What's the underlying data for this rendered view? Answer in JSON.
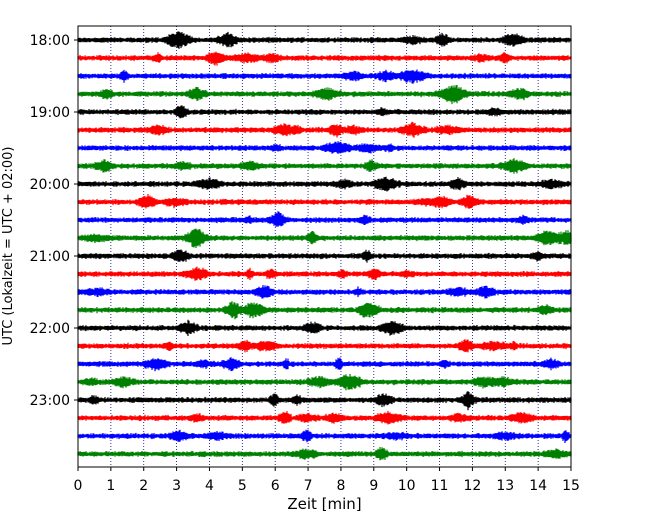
{
  "chart_data": {
    "type": "line",
    "title": "",
    "xlabel": "Zeit  [min]",
    "ylabel": "UTC (Lokalzeit = UTC + 02:00)",
    "xlim": [
      0,
      15
    ],
    "x_ticks": [
      "0",
      "1",
      "2",
      "3",
      "4",
      "5",
      "6",
      "7",
      "8",
      "9",
      "10",
      "11",
      "12",
      "13",
      "14",
      "15"
    ],
    "y_ticks": [
      "18:00",
      "19:00",
      "20:00",
      "21:00",
      "22:00",
      "23:00"
    ],
    "grid": "vertical dotted at each minute",
    "trace_colors": [
      "#000000",
      "#ff0000",
      "#0000ff",
      "#008000"
    ],
    "series": [
      {
        "start": "18:00",
        "color": "#000000"
      },
      {
        "start": "18:15",
        "color": "#ff0000"
      },
      {
        "start": "18:30",
        "color": "#0000ff"
      },
      {
        "start": "18:45",
        "color": "#008000"
      },
      {
        "start": "19:00",
        "color": "#000000"
      },
      {
        "start": "19:15",
        "color": "#ff0000"
      },
      {
        "start": "19:30",
        "color": "#0000ff"
      },
      {
        "start": "19:45",
        "color": "#008000"
      },
      {
        "start": "20:00",
        "color": "#000000"
      },
      {
        "start": "20:15",
        "color": "#ff0000"
      },
      {
        "start": "20:30",
        "color": "#0000ff"
      },
      {
        "start": "20:45",
        "color": "#008000"
      },
      {
        "start": "21:00",
        "color": "#000000"
      },
      {
        "start": "21:15",
        "color": "#ff0000"
      },
      {
        "start": "21:30",
        "color": "#0000ff"
      },
      {
        "start": "21:45",
        "color": "#008000"
      },
      {
        "start": "22:00",
        "color": "#000000"
      },
      {
        "start": "22:15",
        "color": "#ff0000"
      },
      {
        "start": "22:30",
        "color": "#0000ff"
      },
      {
        "start": "22:45",
        "color": "#008000"
      },
      {
        "start": "23:00",
        "color": "#000000"
      },
      {
        "start": "23:15",
        "color": "#ff0000"
      },
      {
        "start": "23:30",
        "color": "#0000ff"
      },
      {
        "start": "23:45",
        "color": "#008000"
      }
    ]
  }
}
